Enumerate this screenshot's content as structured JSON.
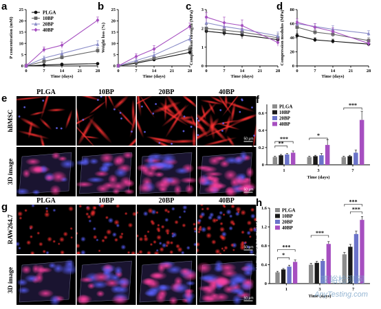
{
  "chart_data": [
    {
      "id": "a",
      "letter": "a",
      "type": "line",
      "xlabel": "Time (days)",
      "ylabel": "P concentration (mM)",
      "x": [
        0,
        7,
        14,
        28
      ],
      "xticks": [
        0,
        7,
        14,
        21,
        28
      ],
      "xlim": [
        0,
        28
      ],
      "ylim": [
        0,
        25
      ],
      "yticks": [
        0,
        5,
        10,
        15,
        20,
        25
      ],
      "series": [
        {
          "name": "PLGA",
          "color": "#111111",
          "marker": "circle",
          "values": [
            0,
            0.4,
            0.7,
            1.0
          ],
          "err": [
            0.1,
            0.2,
            0.3,
            0.3
          ]
        },
        {
          "name": "10BP",
          "color": "#666666",
          "marker": "square",
          "values": [
            0,
            2.0,
            3.8,
            6.8
          ],
          "err": [
            0.3,
            0.6,
            0.9,
            1.2
          ]
        },
        {
          "name": "20BP",
          "color": "#8a8cc8",
          "marker": "triangle",
          "values": [
            0,
            3.5,
            5.5,
            9.6
          ],
          "err": [
            0.5,
            0.8,
            1.2,
            1.6
          ]
        },
        {
          "name": "40BP",
          "color": "#a64fc0",
          "marker": "diamond",
          "values": [
            0,
            7.2,
            9.2,
            20.3
          ],
          "err": [
            0.9,
            1.2,
            1.4,
            1.4
          ]
        }
      ]
    },
    {
      "id": "b",
      "letter": "b",
      "type": "line",
      "xlabel": "Time (days)",
      "ylabel": "Weight loss (%)",
      "x": [
        0,
        7,
        14,
        28
      ],
      "xticks": [
        0,
        7,
        14,
        21,
        28
      ],
      "xlim": [
        0,
        28
      ],
      "ylim": [
        0,
        25
      ],
      "yticks": [
        0,
        5,
        10,
        15,
        20,
        25
      ],
      "series": [
        {
          "name": "PLGA",
          "color": "#111111",
          "marker": "circle",
          "values": [
            0,
            1.2,
            2.8,
            6.0
          ],
          "err": [
            0.3,
            0.5,
            0.7,
            1.0
          ]
        },
        {
          "name": "10BP",
          "color": "#666666",
          "marker": "square",
          "values": [
            0,
            1.6,
            3.5,
            7.5
          ],
          "err": [
            0.4,
            0.6,
            0.8,
            1.2
          ]
        },
        {
          "name": "20BP",
          "color": "#8a8cc8",
          "marker": "triangle",
          "values": [
            0,
            2.4,
            4.8,
            12.0
          ],
          "err": [
            0.6,
            0.9,
            1.1,
            1.5
          ]
        },
        {
          "name": "40BP",
          "color": "#a64fc0",
          "marker": "diamond",
          "values": [
            0,
            4.2,
            7.5,
            17.5
          ],
          "err": [
            0.8,
            1.2,
            1.5,
            1.6
          ]
        }
      ]
    },
    {
      "id": "c",
      "letter": "c",
      "type": "line",
      "xlabel": "Time (days)",
      "ylabel": "Compression strength (MPa)",
      "x": [
        0,
        7,
        14,
        28
      ],
      "xticks": [
        0,
        7,
        14,
        21,
        28
      ],
      "xlim": [
        0,
        28
      ],
      "ylim": [
        0,
        3
      ],
      "yticks": [
        0,
        1,
        2,
        3
      ],
      "series": [
        {
          "name": "PLGA",
          "color": "#111111",
          "marker": "circle",
          "values": [
            1.85,
            1.75,
            1.65,
            1.4
          ],
          "err": [
            0.15,
            0.15,
            0.2,
            0.15
          ]
        },
        {
          "name": "10BP",
          "color": "#666666",
          "marker": "square",
          "values": [
            2.0,
            1.9,
            1.8,
            1.5
          ],
          "err": [
            0.2,
            0.2,
            0.2,
            0.2
          ]
        },
        {
          "name": "20BP",
          "color": "#8a8cc8",
          "marker": "triangle",
          "values": [
            2.3,
            2.1,
            1.95,
            1.6
          ],
          "err": [
            0.25,
            0.2,
            0.25,
            0.2
          ]
        },
        {
          "name": "40BP",
          "color": "#a64fc0",
          "marker": "diamond",
          "values": [
            2.6,
            2.3,
            2.15,
            1.25
          ],
          "err": [
            0.25,
            0.3,
            0.3,
            0.2
          ]
        }
      ]
    },
    {
      "id": "d",
      "letter": "d",
      "type": "line",
      "xlabel": "Time (days)",
      "ylabel": "Compression modulus (MPa)",
      "x": [
        0,
        7,
        14,
        28
      ],
      "xticks": [
        0,
        7,
        14,
        21,
        28
      ],
      "xlim": [
        0,
        28
      ],
      "ylim": [
        0,
        80
      ],
      "yticks": [
        0,
        20,
        40,
        60,
        80
      ],
      "series": [
        {
          "name": "PLGA",
          "color": "#111111",
          "marker": "circle",
          "values": [
            43,
            37,
            35,
            31
          ],
          "err": [
            3,
            3,
            3,
            3
          ]
        },
        {
          "name": "10BP",
          "color": "#666666",
          "marker": "square",
          "values": [
            55,
            48,
            45,
            36
          ],
          "err": [
            4,
            4,
            4,
            4
          ]
        },
        {
          "name": "20BP",
          "color": "#8a8cc8",
          "marker": "triangle",
          "values": [
            60,
            56,
            52,
            46
          ],
          "err": [
            4,
            4,
            5,
            4
          ]
        },
        {
          "name": "40BP",
          "color": "#a64fc0",
          "marker": "diamond",
          "values": [
            62,
            55,
            49,
            32
          ],
          "err": [
            5,
            5,
            5,
            4
          ]
        }
      ]
    },
    {
      "id": "f",
      "letter": "f",
      "type": "bar",
      "xlabel": "Time (days)",
      "ylabel": "Cell viability ( O.D value )",
      "categories": [
        "1",
        "3",
        "7"
      ],
      "ylim": [
        0,
        0.7
      ],
      "yticks": [
        0,
        0.2,
        0.4,
        0.6
      ],
      "series": [
        {
          "name": "PLGA",
          "color": "#8c8c8c",
          "values": [
            0.09,
            0.09,
            0.09
          ],
          "err": [
            0.01,
            0.01,
            0.01
          ]
        },
        {
          "name": "10BP",
          "color": "#1a1a1a",
          "values": [
            0.11,
            0.1,
            0.1
          ],
          "err": [
            0.01,
            0.01,
            0.01
          ]
        },
        {
          "name": "20BP",
          "color": "#6b73c9",
          "values": [
            0.12,
            0.11,
            0.14
          ],
          "err": [
            0.01,
            0.02,
            0.03
          ]
        },
        {
          "name": "40BP",
          "color": "#a64fc0",
          "values": [
            0.14,
            0.23,
            0.52
          ],
          "err": [
            0.02,
            0.06,
            0.1
          ]
        }
      ],
      "significance": [
        {
          "cat": 0,
          "from": 0,
          "to": 2,
          "label": "**",
          "y": 0.22
        },
        {
          "cat": 0,
          "from": 0,
          "to": 3,
          "label": "***",
          "y": 0.27
        },
        {
          "cat": 1,
          "from": 0,
          "to": 3,
          "label": "*",
          "y": 0.31
        },
        {
          "cat": 2,
          "from": 0,
          "to": 3,
          "label": "***",
          "y": 0.66
        }
      ]
    },
    {
      "id": "h",
      "letter": "h",
      "type": "bar",
      "xlabel": "Time (days)",
      "ylabel": "Cell viability ( O.D value )",
      "categories": [
        "1",
        "3",
        "7"
      ],
      "ylim": [
        0,
        1.6
      ],
      "yticks": [
        0,
        0.4,
        0.8,
        1.2,
        1.6
      ],
      "series": [
        {
          "name": "PLGA",
          "color": "#8c8c8c",
          "values": [
            0.24,
            0.4,
            0.62
          ],
          "err": [
            0.02,
            0.03,
            0.04
          ]
        },
        {
          "name": "10BP",
          "color": "#1a1a1a",
          "values": [
            0.3,
            0.44,
            0.78
          ],
          "err": [
            0.02,
            0.03,
            0.05
          ]
        },
        {
          "name": "20BP",
          "color": "#6b73c9",
          "values": [
            0.36,
            0.48,
            1.05
          ],
          "err": [
            0.03,
            0.03,
            0.06
          ]
        },
        {
          "name": "40BP",
          "color": "#a64fc0",
          "values": [
            0.46,
            0.84,
            1.35
          ],
          "err": [
            0.04,
            0.05,
            0.07
          ]
        }
      ],
      "significance": [
        {
          "cat": 0,
          "from": 0,
          "to": 2,
          "label": "*",
          "y": 0.55
        },
        {
          "cat": 0,
          "from": 0,
          "to": 3,
          "label": "***",
          "y": 0.72
        },
        {
          "cat": 1,
          "from": 0,
          "to": 3,
          "label": "***",
          "y": 1.02
        },
        {
          "cat": 2,
          "from": 0,
          "to": 3,
          "label": "***",
          "y": 1.68
        },
        {
          "cat": 2,
          "from": 1,
          "to": 3,
          "label": "***",
          "y": 1.52
        }
      ]
    }
  ],
  "image_panels": [
    {
      "letter": "e",
      "columns": [
        "PLGA",
        "10BP",
        "20BP",
        "40BP"
      ],
      "rows": [
        "hBMSC",
        "3D image"
      ],
      "scale_bar": "50 μm"
    },
    {
      "letter": "g",
      "columns": [
        "PLGA",
        "10BP",
        "20BP",
        "40BP"
      ],
      "rows": [
        "RAW264.7",
        "3D image"
      ],
      "scale_bar": "50 μm"
    }
  ],
  "watermark": {
    "cn": "嘉峪检测网",
    "en": "AnyTesting.com"
  }
}
